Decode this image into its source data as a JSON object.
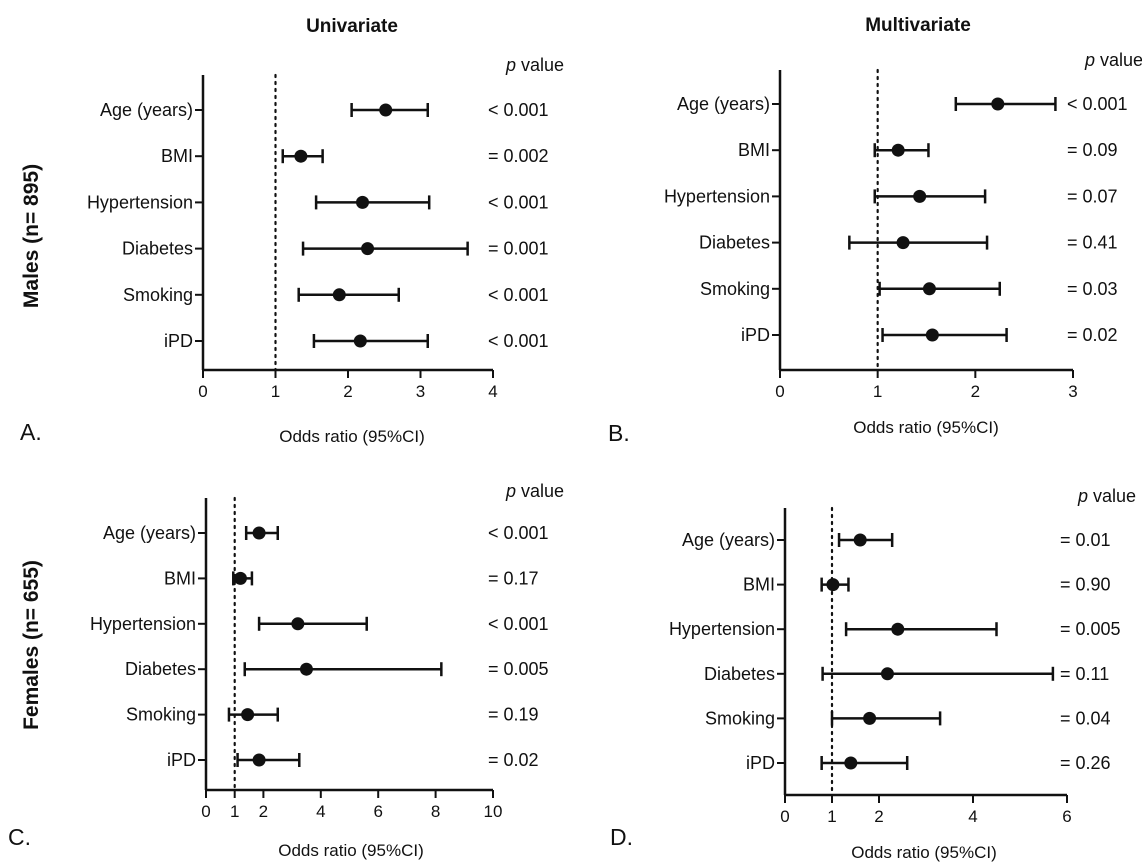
{
  "figure": {
    "col_titles": [
      "Univariate",
      "Multivariate"
    ],
    "row_titles": [
      "Males (n= 895)",
      "Females (n= 655)"
    ],
    "pvalue_header_italic": "p",
    "pvalue_header_rest": " value"
  },
  "chart_data": [
    {
      "type": "forest",
      "panel_label": "A.",
      "xlabel": "Odds ratio (95%CI)",
      "xlim": [
        0,
        4
      ],
      "xticks": [
        0,
        1,
        2,
        3,
        4
      ],
      "reference_line": 1,
      "categories": [
        "Age (years)",
        "BMI",
        "Hypertension",
        "Diabetes",
        "Smoking",
        "iPD"
      ],
      "estimates": [
        2.52,
        1.35,
        2.2,
        2.27,
        1.88,
        2.17
      ],
      "ci_lower": [
        2.05,
        1.1,
        1.56,
        1.38,
        1.32,
        1.53
      ],
      "ci_upper": [
        3.1,
        1.65,
        3.12,
        3.65,
        2.7,
        3.1
      ],
      "p_values": [
        "< 0.001",
        "= 0.002",
        "< 0.001",
        "= 0.001",
        "< 0.001",
        "< 0.001"
      ]
    },
    {
      "type": "forest",
      "panel_label": "B.",
      "xlabel": "Odds ratio (95%CI)",
      "xlim": [
        0,
        3
      ],
      "xticks": [
        0,
        1,
        2,
        3
      ],
      "reference_line": 1,
      "categories": [
        "Age (years)",
        "BMI",
        "Hypertension",
        "Diabetes",
        "Smoking",
        "iPD"
      ],
      "estimates": [
        2.23,
        1.21,
        1.43,
        1.26,
        1.53,
        1.56
      ],
      "ci_lower": [
        1.8,
        0.97,
        0.97,
        0.71,
        1.02,
        1.05
      ],
      "ci_upper": [
        2.82,
        1.52,
        2.1,
        2.12,
        2.25,
        2.32
      ],
      "p_values": [
        "< 0.001",
        "= 0.09",
        "= 0.07",
        "= 0.41",
        "= 0.03",
        "= 0.02"
      ]
    },
    {
      "type": "forest",
      "panel_label": "C.",
      "xlabel": "Odds ratio (95%CI)",
      "xlim": [
        0,
        10
      ],
      "xticks": [
        0,
        1,
        2,
        4,
        6,
        8,
        10
      ],
      "reference_line": 1,
      "categories": [
        "Age (years)",
        "BMI",
        "Hypertension",
        "Diabetes",
        "Smoking",
        "iPD"
      ],
      "estimates": [
        1.85,
        1.2,
        3.2,
        3.5,
        1.45,
        1.85
      ],
      "ci_lower": [
        1.4,
        0.95,
        1.85,
        1.35,
        0.8,
        1.1
      ],
      "ci_upper": [
        2.5,
        1.6,
        5.6,
        8.2,
        2.5,
        3.25
      ],
      "p_values": [
        "< 0.001",
        "= 0.17",
        "< 0.001",
        "= 0.005",
        "= 0.19",
        "= 0.02"
      ]
    },
    {
      "type": "forest",
      "panel_label": "D.",
      "xlabel": "Odds ratio (95%CI)",
      "xlim": [
        0,
        6
      ],
      "xticks": [
        0,
        1,
        2,
        4,
        6
      ],
      "reference_line": 1,
      "categories": [
        "Age (years)",
        "BMI",
        "Hypertension",
        "Diabetes",
        "Smoking",
        "iPD"
      ],
      "estimates": [
        1.6,
        1.02,
        2.4,
        2.18,
        1.8,
        1.4
      ],
      "ci_lower": [
        1.15,
        0.78,
        1.3,
        0.8,
        1.0,
        0.78
      ],
      "ci_upper": [
        2.28,
        1.35,
        4.5,
        5.7,
        3.3,
        2.6
      ],
      "p_values": [
        "= 0.01",
        "= 0.90",
        "= 0.005",
        "= 0.11",
        "= 0.04",
        "= 0.26"
      ]
    }
  ]
}
